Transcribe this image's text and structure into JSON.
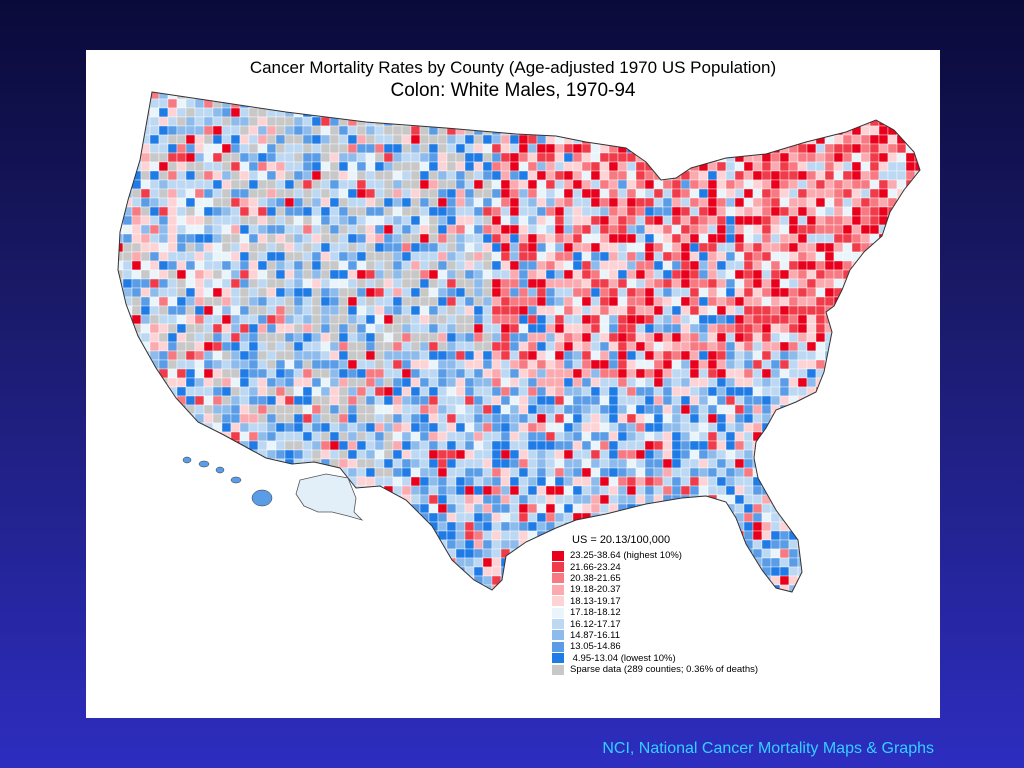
{
  "map": {
    "title": "Cancer Mortality Rates by County (Age-adjusted 1970 US Population)",
    "subtitle": "Colon:  White Males, 1970-94"
  },
  "legend": {
    "header": "US = 20.13/100,000",
    "items": [
      {
        "label": "23.25-38.64 (highest 10%)",
        "color": "#e8001c"
      },
      {
        "label": "21.66-23.24",
        "color": "#f03c4a"
      },
      {
        "label": "20.38-21.65",
        "color": "#f77a82"
      },
      {
        "label": "19.18-20.37",
        "color": "#fbaab0"
      },
      {
        "label": "18.13-19.17",
        "color": "#fdd3d6"
      },
      {
        "label": "17.18-18.12",
        "color": "#eaf4fb"
      },
      {
        "label": "16.12-17.17",
        "color": "#bcd8f2"
      },
      {
        "label": "14.87-16.11",
        "color": "#8dbbeb"
      },
      {
        "label": "13.05-14.86",
        "color": "#5a9de6"
      },
      {
        "label": " 4.95-13.04 (lowest 10%)",
        "color": "#1f7be6"
      },
      {
        "label": "Sparse data (289 counties; 0.36% of deaths)",
        "color": "#c8c8c8"
      }
    ]
  },
  "footer": {
    "source": "NCI, National Cancer Mortality Maps & Graphs"
  }
}
